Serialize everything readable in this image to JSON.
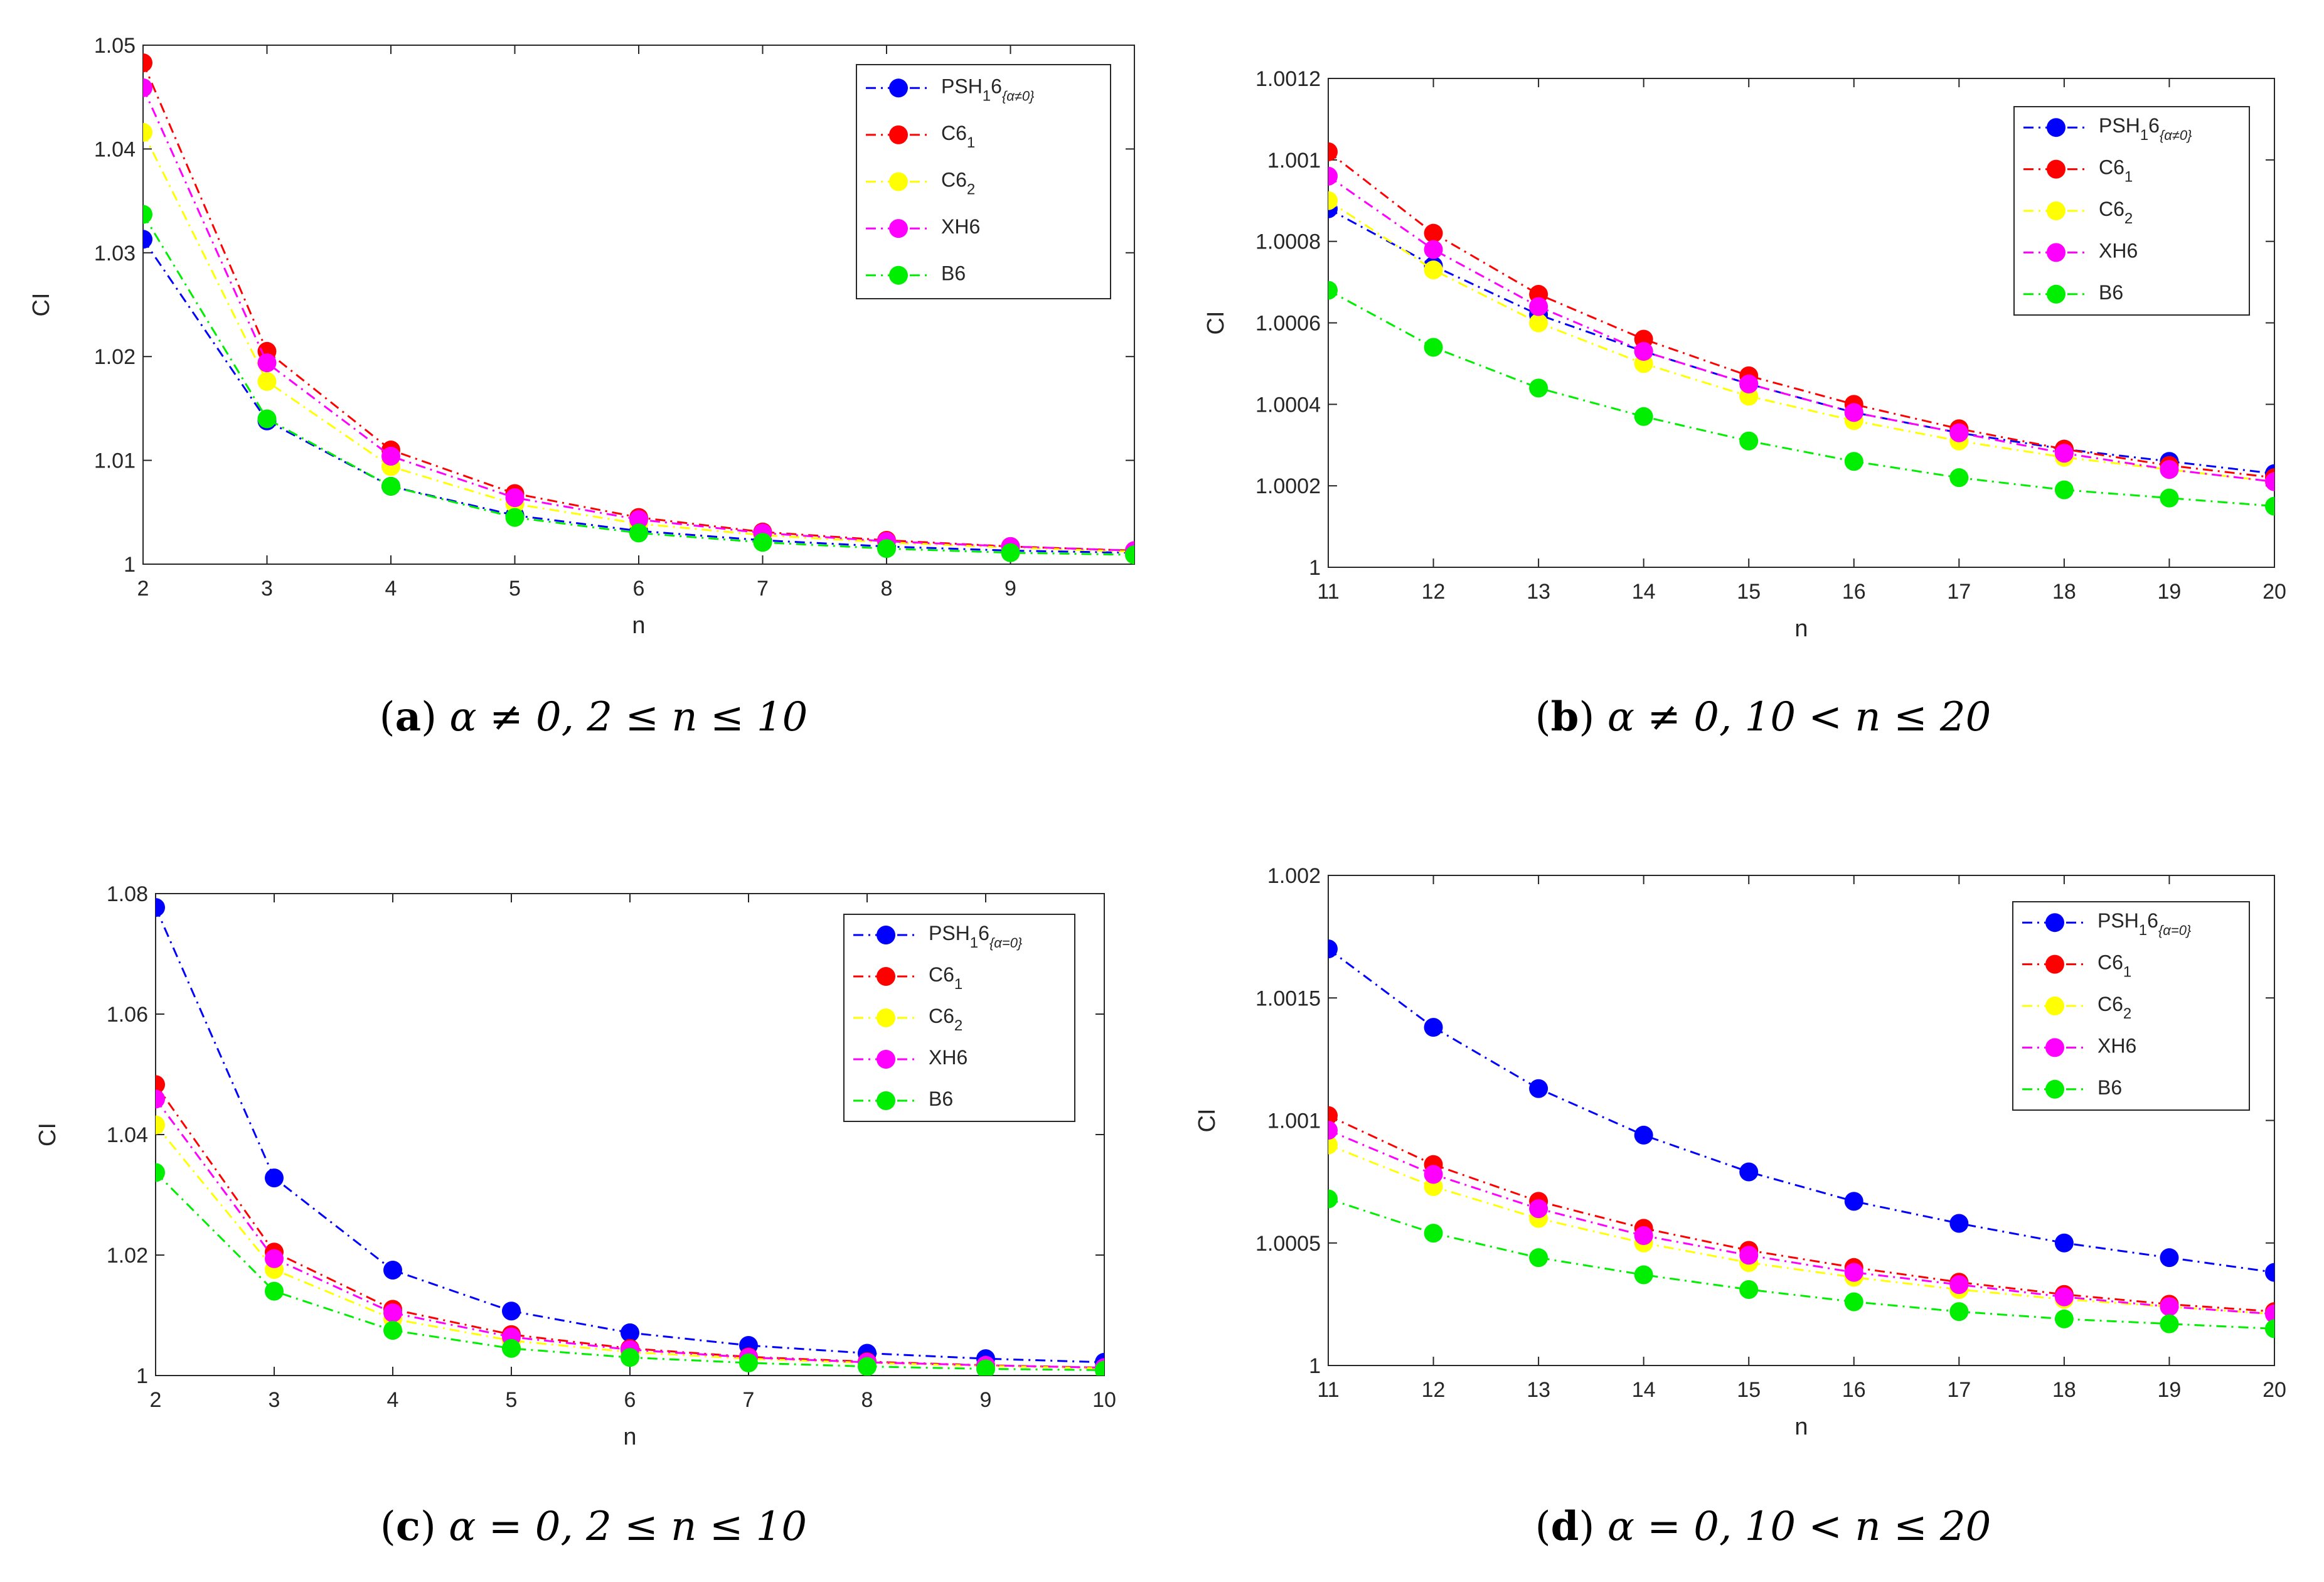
{
  "colors": {
    "psh": "#0000ff",
    "c61": "#ff0000",
    "c62": "#ffff00",
    "xh6": "#ff00ff",
    "b6": "#00ee00"
  },
  "chart_data": [
    {
      "type": "line",
      "panel": "a",
      "caption": {
        "letter": "a",
        "text": "α ≠ 0, 2 ≤ n ≤ 10"
      },
      "xlabel": "n",
      "ylabel": "CI",
      "xlim": [
        2,
        10
      ],
      "ylim": [
        1,
        1.05
      ],
      "xticks": [
        2,
        3,
        4,
        5,
        6,
        7,
        8,
        9
      ],
      "xticklabels": [
        "2",
        "3",
        "4",
        "5",
        "6",
        "7",
        "8",
        "9"
      ],
      "yticks": [
        1,
        1.01,
        1.02,
        1.03,
        1.04,
        1.05
      ],
      "yticklabels": [
        "1",
        "1.01",
        "1.02",
        "1.03",
        "1.04",
        "1.05"
      ],
      "legend_position": "top-right",
      "x": [
        2,
        3,
        4,
        5,
        6,
        7,
        8,
        9,
        10
      ],
      "series": [
        {
          "key": "psh",
          "name": "PSH",
          "sub1": "1",
          "mid": "6",
          "sub2": "{α≠0}",
          "values": [
            1.0313,
            1.0138,
            1.0075,
            1.0047,
            1.0032,
            1.0023,
            1.0017,
            1.0013,
            1.0011
          ]
        },
        {
          "key": "c61",
          "name": "C6",
          "sub1": "1",
          "mid": "",
          "sub2": "",
          "values": [
            1.0483,
            1.0205,
            1.011,
            1.0068,
            1.0045,
            1.0031,
            1.0023,
            1.0017,
            1.0013
          ]
        },
        {
          "key": "c62",
          "name": "C6",
          "sub1": "2",
          "mid": "",
          "sub2": "",
          "values": [
            1.0416,
            1.0176,
            1.0094,
            1.0058,
            1.0039,
            1.0028,
            1.0021,
            1.0016,
            1.0012
          ]
        },
        {
          "key": "xh6",
          "name": "XH6",
          "sub1": "",
          "mid": "",
          "sub2": "",
          "values": [
            1.0459,
            1.0194,
            1.0104,
            1.0064,
            1.0043,
            1.003,
            1.0022,
            1.0017,
            1.0013
          ]
        },
        {
          "key": "b6",
          "name": "B6",
          "sub1": "",
          "mid": "",
          "sub2": "",
          "values": [
            1.0337,
            1.014,
            1.0075,
            1.0045,
            1.003,
            1.0021,
            1.0015,
            1.0011,
            1.0009
          ]
        }
      ]
    },
    {
      "type": "line",
      "panel": "b",
      "caption": {
        "letter": "b",
        "text": "α ≠ 0, 10 < n ≤ 20"
      },
      "xlabel": "n",
      "ylabel": "CI",
      "xlim": [
        11,
        20
      ],
      "ylim": [
        1,
        1.0012
      ],
      "xticks": [
        11,
        12,
        13,
        14,
        15,
        16,
        17,
        18,
        19,
        20
      ],
      "xticklabels": [
        "11",
        "12",
        "13",
        "14",
        "15",
        "16",
        "17",
        "18",
        "19",
        "20"
      ],
      "yticks": [
        1,
        1.0002,
        1.0004,
        1.0006,
        1.0008,
        1.001,
        1.0012
      ],
      "yticklabels": [
        "1",
        "1.0002",
        "1.0004",
        "1.0006",
        "1.0008",
        "1.001",
        "1.0012"
      ],
      "legend_position": "top-right",
      "x": [
        11,
        12,
        13,
        14,
        15,
        16,
        17,
        18,
        19,
        20
      ],
      "series": [
        {
          "key": "psh",
          "name": "PSH",
          "sub1": "1",
          "mid": "6",
          "sub2": "{α≠0}",
          "values": [
            1.00088,
            1.00074,
            1.00062,
            1.00053,
            1.00045,
            1.00038,
            1.00033,
            1.00029,
            1.00026,
            1.00023
          ]
        },
        {
          "key": "c61",
          "name": "C6",
          "sub1": "1",
          "mid": "",
          "sub2": "",
          "values": [
            1.00102,
            1.00082,
            1.00067,
            1.00056,
            1.00047,
            1.0004,
            1.00034,
            1.00029,
            1.00025,
            1.00022
          ]
        },
        {
          "key": "c62",
          "name": "C6",
          "sub1": "2",
          "mid": "",
          "sub2": "",
          "values": [
            1.0009,
            1.00073,
            1.0006,
            1.0005,
            1.00042,
            1.00036,
            1.00031,
            1.00027,
            1.00024,
            1.00021
          ]
        },
        {
          "key": "xh6",
          "name": "XH6",
          "sub1": "",
          "mid": "",
          "sub2": "",
          "values": [
            1.00096,
            1.00078,
            1.00064,
            1.00053,
            1.00045,
            1.00038,
            1.00033,
            1.00028,
            1.00024,
            1.00021
          ]
        },
        {
          "key": "b6",
          "name": "B6",
          "sub1": "",
          "mid": "",
          "sub2": "",
          "values": [
            1.00068,
            1.00054,
            1.00044,
            1.00037,
            1.00031,
            1.00026,
            1.00022,
            1.00019,
            1.00017,
            1.00015
          ]
        }
      ]
    },
    {
      "type": "line",
      "panel": "c",
      "caption": {
        "letter": "c",
        "text": "α = 0, 2 ≤ n ≤ 10"
      },
      "xlabel": "n",
      "ylabel": "CI",
      "xlim": [
        2,
        10
      ],
      "ylim": [
        1,
        1.08
      ],
      "xticks": [
        2,
        3,
        4,
        5,
        6,
        7,
        8,
        9,
        10
      ],
      "xticklabels": [
        "2",
        "3",
        "4",
        "5",
        "6",
        "7",
        "8",
        "9",
        "10"
      ],
      "yticks": [
        1,
        1.02,
        1.04,
        1.06,
        1.08
      ],
      "yticklabels": [
        "1",
        "1.02",
        "1.04",
        "1.06",
        "1.08"
      ],
      "legend_position": "top-right",
      "x": [
        2,
        3,
        4,
        5,
        6,
        7,
        8,
        9,
        10
      ],
      "series": [
        {
          "key": "psh",
          "name": "PSH",
          "sub1": "1",
          "mid": "6",
          "sub2": "{α=0}",
          "values": [
            1.0777,
            1.0328,
            1.0175,
            1.0107,
            1.0071,
            1.005,
            1.0037,
            1.0028,
            1.0022
          ]
        },
        {
          "key": "c61",
          "name": "C6",
          "sub1": "1",
          "mid": "",
          "sub2": "",
          "values": [
            1.0483,
            1.0205,
            1.011,
            1.0068,
            1.0045,
            1.0031,
            1.0023,
            1.0017,
            1.0013
          ]
        },
        {
          "key": "c62",
          "name": "C6",
          "sub1": "2",
          "mid": "",
          "sub2": "",
          "values": [
            1.0416,
            1.0176,
            1.0094,
            1.0058,
            1.0039,
            1.0028,
            1.0021,
            1.0016,
            1.0012
          ]
        },
        {
          "key": "xh6",
          "name": "XH6",
          "sub1": "",
          "mid": "",
          "sub2": "",
          "values": [
            1.0459,
            1.0194,
            1.0104,
            1.0064,
            1.0043,
            1.003,
            1.0022,
            1.0017,
            1.0013
          ]
        },
        {
          "key": "b6",
          "name": "B6",
          "sub1": "",
          "mid": "",
          "sub2": "",
          "values": [
            1.0337,
            1.014,
            1.0075,
            1.0045,
            1.003,
            1.0021,
            1.0015,
            1.0011,
            1.0009
          ]
        }
      ]
    },
    {
      "type": "line",
      "panel": "d",
      "caption": {
        "letter": "d",
        "text": "α = 0, 10 < n ≤ 20"
      },
      "xlabel": "n",
      "ylabel": "CI",
      "xlim": [
        11,
        20
      ],
      "ylim": [
        1,
        1.002
      ],
      "xticks": [
        11,
        12,
        13,
        14,
        15,
        16,
        17,
        18,
        19,
        20
      ],
      "xticklabels": [
        "11",
        "12",
        "13",
        "14",
        "15",
        "16",
        "17",
        "18",
        "19",
        "20"
      ],
      "yticks": [
        1,
        1.0005,
        1.001,
        1.0015,
        1.002
      ],
      "yticklabels": [
        "1",
        "1.0005",
        "1.001",
        "1.0015",
        "1.002"
      ],
      "legend_position": "top-right",
      "x": [
        11,
        12,
        13,
        14,
        15,
        16,
        17,
        18,
        19,
        20
      ],
      "series": [
        {
          "key": "psh",
          "name": "PSH",
          "sub1": "1",
          "mid": "6",
          "sub2": "{α=0}",
          "values": [
            1.0017,
            1.00138,
            1.00113,
            1.00094,
            1.00079,
            1.00067,
            1.00058,
            1.0005,
            1.00044,
            1.00038
          ]
        },
        {
          "key": "c61",
          "name": "C6",
          "sub1": "1",
          "mid": "",
          "sub2": "",
          "values": [
            1.00102,
            1.00082,
            1.00067,
            1.00056,
            1.00047,
            1.0004,
            1.00034,
            1.00029,
            1.00025,
            1.00022
          ]
        },
        {
          "key": "c62",
          "name": "C6",
          "sub1": "2",
          "mid": "",
          "sub2": "",
          "values": [
            1.0009,
            1.00073,
            1.0006,
            1.0005,
            1.00042,
            1.00036,
            1.00031,
            1.00027,
            1.00024,
            1.00021
          ]
        },
        {
          "key": "xh6",
          "name": "XH6",
          "sub1": "",
          "mid": "",
          "sub2": "",
          "values": [
            1.00096,
            1.00078,
            1.00064,
            1.00053,
            1.00045,
            1.00038,
            1.00033,
            1.00028,
            1.00024,
            1.00021
          ]
        },
        {
          "key": "b6",
          "name": "B6",
          "sub1": "",
          "mid": "",
          "sub2": "",
          "values": [
            1.00068,
            1.00054,
            1.00044,
            1.00037,
            1.00031,
            1.00026,
            1.00022,
            1.00019,
            1.00017,
            1.00015
          ]
        }
      ]
    }
  ]
}
